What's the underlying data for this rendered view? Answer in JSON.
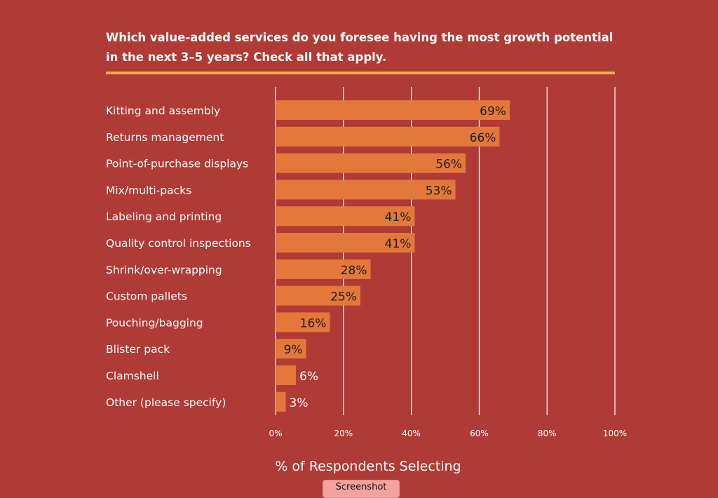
{
  "title": "Which value-added services do you foresee having the most growth potential in the next 3–5 years? Check all that apply.",
  "xlabel": "% of Respondents Selecting",
  "screenshot_button": "Screenshot",
  "colors": {
    "background": "#b03a36",
    "bar": "#e4773a",
    "accent_rule": "#f3ad4f",
    "gridline": "#ffffff",
    "text": "#ffffff",
    "value_label_inside": "#1f1f1f"
  },
  "chart_data": {
    "type": "bar",
    "orientation": "horizontal",
    "title": "Which value-added services do you foresee having the most growth potential in the next 3–5 years? Check all that apply.",
    "xlabel": "% of Respondents Selecting",
    "ylabel": "",
    "xlim": [
      0,
      100
    ],
    "xticks": [
      "0%",
      "20%",
      "40%",
      "60%",
      "80%",
      "100%"
    ],
    "grid": true,
    "categories": [
      "Kitting and assembly",
      "Returns management",
      "Point-of-purchase displays",
      "Mix/multi-packs",
      "Labeling and printing",
      "Quality control inspections",
      "Shrink/over-wrapping",
      "Custom pallets",
      "Pouching/bagging",
      "Blister pack",
      "Clamshell",
      "Other (please specify)"
    ],
    "values": [
      69,
      66,
      56,
      53,
      41,
      41,
      28,
      25,
      16,
      9,
      6,
      3
    ],
    "value_labels": [
      "69%",
      "66%",
      "56%",
      "53%",
      "41%",
      "41%",
      "28%",
      "25%",
      "16%",
      "9%",
      "6%",
      "3%"
    ]
  }
}
